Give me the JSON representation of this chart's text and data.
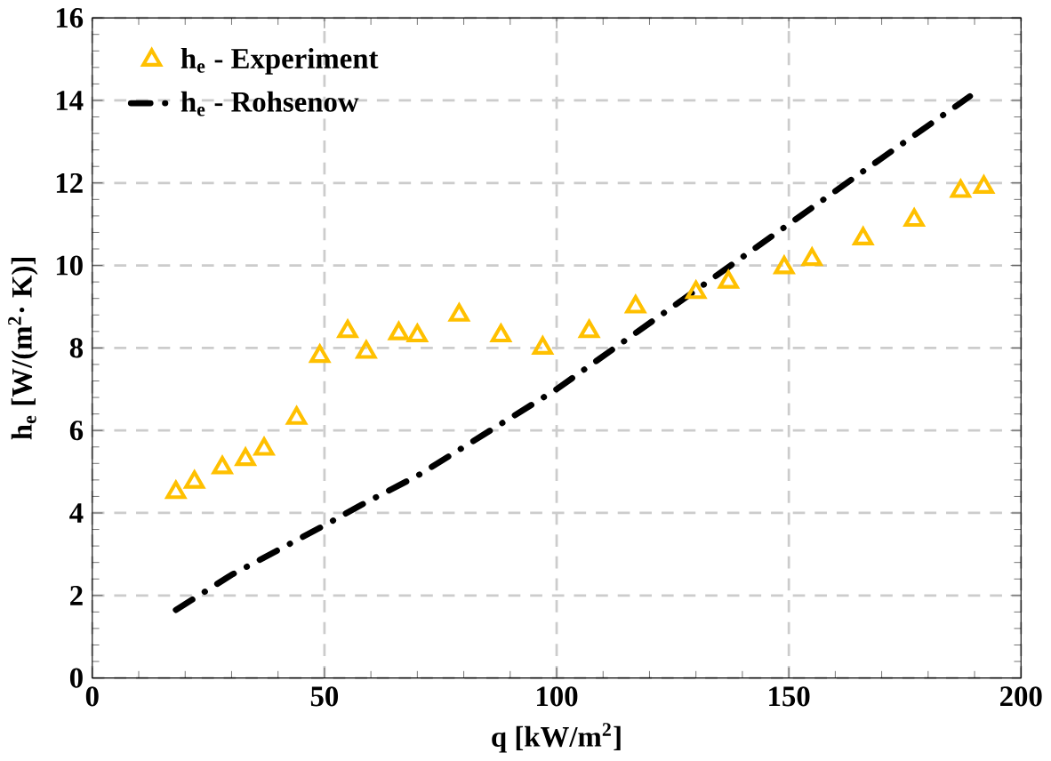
{
  "chart_data": {
    "type": "scatter",
    "xlabel": "q [kW/m$^{2}$]",
    "ylabel": "h$_{e}$ [W/(m$^{2}$· K)]",
    "xlim": [
      0,
      200
    ],
    "xticks": [
      0,
      50,
      100,
      150,
      200
    ],
    "ylim": [
      0,
      16
    ],
    "yticks": [
      0,
      2,
      4,
      6,
      8,
      10,
      12,
      14,
      16
    ],
    "grid": true,
    "legend": "top left",
    "series": [
      {
        "name": "h$_{e}$ - Experiment",
        "color": "#ffc000",
        "marker": "triangle",
        "x": [
          18,
          22,
          28,
          33,
          37,
          44,
          49,
          55,
          59,
          66,
          70,
          79,
          88,
          97,
          107,
          117,
          130,
          137,
          149,
          155,
          166,
          177,
          187,
          192
        ],
        "values": [
          4.5,
          4.75,
          5.1,
          5.3,
          5.55,
          6.3,
          7.8,
          8.4,
          7.9,
          8.35,
          8.3,
          8.8,
          8.3,
          8.0,
          8.4,
          9.0,
          9.35,
          9.6,
          9.95,
          10.15,
          10.65,
          11.1,
          11.8,
          11.9
        ]
      },
      {
        "name": "h$_{e}$ - Rohsenow",
        "type": "line",
        "color": "#000000",
        "line_style": "dashdot",
        "marker": "none",
        "x": [
          18,
          30,
          50,
          58,
          70,
          80,
          100,
          115,
          130,
          150,
          170,
          189
        ],
        "values": [
          1.65,
          2.5,
          3.7,
          4.2,
          4.9,
          5.6,
          7.0,
          8.2,
          9.4,
          11.0,
          12.6,
          14.1
        ]
      }
    ]
  }
}
